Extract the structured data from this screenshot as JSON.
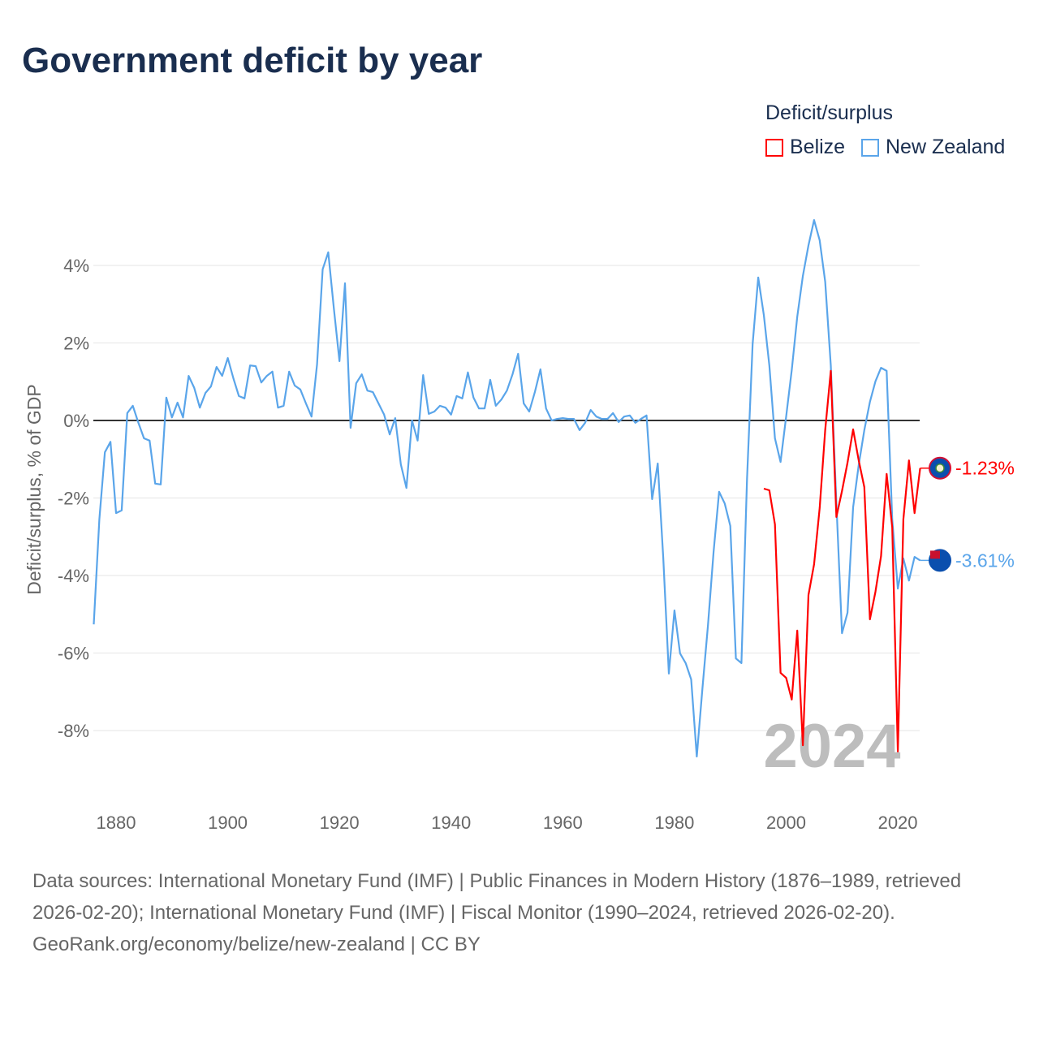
{
  "title": "Government deficit by year",
  "legend": {
    "title": "Deficit/surplus",
    "items": [
      {
        "name": "Belize",
        "color": "#ff0000"
      },
      {
        "name": "New Zealand",
        "color": "#5aa5ea"
      }
    ]
  },
  "footer": {
    "sources": "Data sources: International Monetary Fund (IMF) | Public Finances in Modern History (1876–1989, retrieved 2026-02-20); International Monetary Fund (IMF) | Fiscal Monitor (1990–2024, retrieved 2026-02-20).",
    "credit": "GeoRank.org/economy/belize/new-zealand | CC BY"
  },
  "chart_data": {
    "type": "line",
    "title": "Government deficit by year",
    "ylabel": "Deficit/surplus, % of GDP",
    "xlabel": "",
    "xlim": [
      1876,
      2024
    ],
    "ylim": [
      -9.5,
      5.5
    ],
    "yticks": [
      4,
      2,
      0,
      -2,
      -4,
      -6,
      -8
    ],
    "ytick_labels": [
      "4%",
      "2%",
      "0%",
      "-2%",
      "-4%",
      "-6%",
      "-8%"
    ],
    "xticks": [
      1880,
      1900,
      1920,
      1940,
      1960,
      1980,
      2000,
      2020
    ],
    "xtick_labels": [
      "1880",
      "1900",
      "1920",
      "1940",
      "1960",
      "1980",
      "2000",
      "2020"
    ],
    "grid": true,
    "current_year": "2024",
    "legend_position": "top-right",
    "series": [
      {
        "name": "Belize",
        "color": "#ff0000",
        "start_year": 1996,
        "end_label": "-1.23%",
        "values": [
          -1.76,
          -1.8,
          -2.68,
          -6.51,
          -6.64,
          -7.2,
          -5.42,
          -8.38,
          -4.5,
          -3.71,
          -2.26,
          -0.25,
          1.28,
          -2.49,
          -1.82,
          -1.09,
          -0.23,
          -1.03,
          -1.72,
          -5.13,
          -4.42,
          -3.5,
          -1.38,
          -2.76,
          -8.54,
          -2.55,
          -1.03,
          -2.39,
          -1.23
        ]
      },
      {
        "name": "New Zealand",
        "color": "#5aa5ea",
        "start_year": 1876,
        "end_label": "-3.61%",
        "values": [
          -5.26,
          -2.55,
          -0.82,
          -0.55,
          -2.39,
          -2.32,
          0.19,
          0.38,
          -0.06,
          -0.46,
          -0.52,
          -1.63,
          -1.65,
          0.59,
          0.08,
          0.46,
          0.08,
          1.15,
          0.84,
          0.33,
          0.71,
          0.88,
          1.38,
          1.15,
          1.61,
          1.09,
          0.63,
          0.57,
          1.42,
          1.4,
          0.98,
          1.15,
          1.26,
          0.33,
          0.38,
          1.26,
          0.9,
          0.8,
          0.44,
          0.1,
          1.45,
          3.9,
          4.34,
          2.89,
          1.53,
          3.54,
          -0.19,
          0.96,
          1.19,
          0.77,
          0.73,
          0.44,
          0.15,
          -0.36,
          0.06,
          -1.13,
          -1.74,
          0.0,
          -0.52,
          1.17,
          0.17,
          0.23,
          0.38,
          0.33,
          0.15,
          0.63,
          0.57,
          1.24,
          0.59,
          0.31,
          0.31,
          1.05,
          0.38,
          0.54,
          0.77,
          1.19,
          1.72,
          0.44,
          0.23,
          0.73,
          1.32,
          0.31,
          0.0,
          0.04,
          0.06,
          0.04,
          0.04,
          -0.25,
          -0.06,
          0.27,
          0.1,
          0.04,
          0.04,
          0.19,
          -0.04,
          0.1,
          0.13,
          -0.06,
          0.04,
          0.13,
          -2.03,
          -1.11,
          -3.54,
          -6.53,
          -4.9,
          -6.01,
          -6.26,
          -6.68,
          -8.67,
          -6.93,
          -5.28,
          -3.39,
          -1.84,
          -2.14,
          -2.72,
          -6.14,
          -6.26,
          -1.51,
          1.97,
          3.69,
          2.72,
          1.42,
          -0.46,
          -1.07,
          0.1,
          1.3,
          2.68,
          3.73,
          4.52,
          5.17,
          4.65,
          3.58,
          1.42,
          -2.14,
          -5.49,
          -4.96,
          -2.24,
          -1.15,
          -0.25,
          0.48,
          1.01,
          1.36,
          1.28,
          -2.55,
          -4.34,
          -3.56,
          -4.13,
          -3.52,
          -3.61
        ]
      }
    ]
  }
}
